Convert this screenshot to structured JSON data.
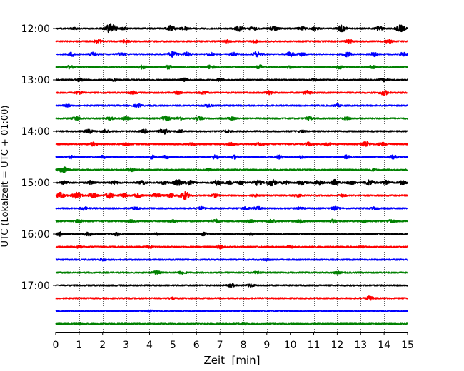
{
  "chart_data": {
    "type": "line",
    "title": "",
    "xlabel": "Zeit  [min]",
    "ylabel": "UTC (Lokalzeit = UTC + 01:00)",
    "xlim": [
      0,
      15
    ],
    "x_ticks": [
      "0",
      "1",
      "2",
      "3",
      "4",
      "5",
      "6",
      "7",
      "8",
      "9",
      "10",
      "11",
      "12",
      "13",
      "14",
      "15"
    ],
    "y_ticks": [
      "12:00",
      "13:00",
      "14:00",
      "15:00",
      "16:00",
      "17:00"
    ],
    "grid": "vertical dotted lines at each minute",
    "legend": "none",
    "trace_interval_minutes": 15,
    "colors_cycle": [
      "#000000",
      "#ff0000",
      "#0000ff",
      "#008000"
    ],
    "series": [
      {
        "start": "12:00",
        "color": "#000000",
        "bursts": [
          [
            0.8,
            0.12
          ],
          [
            2.35,
            0.9
          ],
          [
            2.9,
            0.18
          ],
          [
            4.9,
            0.5
          ],
          [
            5.5,
            0.3
          ],
          [
            7.8,
            0.45
          ],
          [
            8.4,
            0.3
          ],
          [
            9.3,
            0.4
          ],
          [
            10.5,
            0.3
          ],
          [
            11.05,
            0.25
          ],
          [
            12.2,
            0.55
          ],
          [
            13.8,
            0.35
          ],
          [
            14.7,
            0.6
          ]
        ]
      },
      {
        "start": "12:15",
        "color": "#ff0000",
        "bursts": [
          [
            1.8,
            0.3
          ],
          [
            3.0,
            0.25
          ],
          [
            7.3,
            0.25
          ],
          [
            8.5,
            0.2
          ],
          [
            12.5,
            0.3
          ],
          [
            14.2,
            0.25
          ]
        ]
      },
      {
        "start": "12:30",
        "color": "#0000ff",
        "bursts": [
          [
            0.7,
            0.35
          ],
          [
            1.6,
            0.3
          ],
          [
            2.8,
            0.25
          ],
          [
            5.0,
            0.5
          ],
          [
            5.6,
            0.3
          ],
          [
            6.6,
            0.3
          ],
          [
            7.6,
            0.25
          ],
          [
            8.6,
            0.5
          ],
          [
            10.0,
            0.4
          ],
          [
            10.5,
            0.3
          ],
          [
            12.4,
            0.4
          ],
          [
            13.6,
            0.35
          ],
          [
            14.8,
            0.3
          ]
        ]
      },
      {
        "start": "12:45",
        "color": "#008000",
        "bursts": [
          [
            0.6,
            0.3
          ],
          [
            3.7,
            0.3
          ],
          [
            4.8,
            0.3
          ],
          [
            6.6,
            0.35
          ],
          [
            8.7,
            0.3
          ],
          [
            10.0,
            0.25
          ],
          [
            12.1,
            0.3
          ],
          [
            13.5,
            0.25
          ]
        ]
      },
      {
        "start": "13:00",
        "color": "#000000",
        "bursts": [
          [
            1.0,
            0.25
          ],
          [
            2.5,
            0.2
          ],
          [
            5.5,
            0.25
          ],
          [
            7.0,
            0.2
          ],
          [
            11.0,
            0.2
          ],
          [
            14.0,
            0.25
          ]
        ]
      },
      {
        "start": "13:15",
        "color": "#ff0000",
        "bursts": [
          [
            1.0,
            0.3
          ],
          [
            3.3,
            0.25
          ],
          [
            5.2,
            0.25
          ],
          [
            6.3,
            0.3
          ],
          [
            9.1,
            0.3
          ],
          [
            10.7,
            0.35
          ],
          [
            14.0,
            0.45
          ]
        ]
      },
      {
        "start": "13:30",
        "color": "#0000ff",
        "bursts": [
          [
            0.5,
            0.2
          ],
          [
            3.5,
            0.25
          ],
          [
            6.5,
            0.2
          ],
          [
            12.0,
            0.2
          ]
        ]
      },
      {
        "start": "13:45",
        "color": "#008000",
        "bursts": [
          [
            0.9,
            0.35
          ],
          [
            2.3,
            0.25
          ],
          [
            3.0,
            0.35
          ],
          [
            4.7,
            0.45
          ],
          [
            5.3,
            0.3
          ],
          [
            6.1,
            0.3
          ],
          [
            7.5,
            0.25
          ],
          [
            10.8,
            0.25
          ],
          [
            12.4,
            0.25
          ]
        ]
      },
      {
        "start": "14:00",
        "color": "#000000",
        "bursts": [
          [
            1.4,
            0.35
          ],
          [
            2.1,
            0.3
          ],
          [
            3.8,
            0.3
          ],
          [
            4.6,
            0.5
          ],
          [
            5.3,
            0.25
          ],
          [
            7.3,
            0.2
          ],
          [
            10.5,
            0.2
          ]
        ]
      },
      {
        "start": "14:15",
        "color": "#ff0000",
        "bursts": [
          [
            1.6,
            0.3
          ],
          [
            3.0,
            0.2
          ],
          [
            5.8,
            0.2
          ],
          [
            7.5,
            0.25
          ],
          [
            8.7,
            0.25
          ],
          [
            10.8,
            0.3
          ],
          [
            11.6,
            0.25
          ],
          [
            13.2,
            0.6
          ],
          [
            13.9,
            0.3
          ]
        ]
      },
      {
        "start": "14:30",
        "color": "#0000ff",
        "bursts": [
          [
            0.7,
            0.3
          ],
          [
            2.0,
            0.25
          ],
          [
            4.1,
            0.3
          ],
          [
            4.7,
            0.25
          ],
          [
            6.8,
            0.35
          ],
          [
            7.6,
            0.3
          ],
          [
            9.5,
            0.3
          ],
          [
            10.5,
            0.25
          ],
          [
            12.4,
            0.3
          ],
          [
            14.4,
            0.3
          ]
        ]
      },
      {
        "start": "14:45",
        "color": "#008000",
        "bursts": [
          [
            0.3,
            0.6
          ],
          [
            3.2,
            0.25
          ],
          [
            6.5,
            0.2
          ],
          [
            13.5,
            0.2
          ]
        ]
      },
      {
        "start": "15:00",
        "color": "#000000",
        "bursts": [
          [
            0.4,
            0.35
          ],
          [
            1.5,
            0.35
          ],
          [
            2.5,
            0.3
          ],
          [
            3.7,
            0.35
          ],
          [
            4.6,
            0.3
          ],
          [
            5.2,
            0.5
          ],
          [
            5.7,
            0.4
          ],
          [
            6.9,
            0.55
          ],
          [
            7.4,
            0.3
          ],
          [
            7.9,
            0.35
          ],
          [
            8.6,
            0.5
          ],
          [
            9.2,
            0.6
          ],
          [
            9.8,
            0.3
          ],
          [
            10.5,
            0.4
          ],
          [
            11.2,
            0.45
          ],
          [
            11.9,
            0.5
          ],
          [
            12.6,
            0.35
          ],
          [
            13.4,
            0.55
          ],
          [
            14.1,
            0.4
          ],
          [
            14.8,
            0.35
          ]
        ]
      },
      {
        "start": "15:15",
        "color": "#ff0000",
        "bursts": [
          [
            0.2,
            0.5
          ],
          [
            0.9,
            0.55
          ],
          [
            1.6,
            0.5
          ],
          [
            2.3,
            0.45
          ],
          [
            2.9,
            0.35
          ],
          [
            3.5,
            0.3
          ],
          [
            4.3,
            0.45
          ],
          [
            4.9,
            0.4
          ],
          [
            5.5,
            0.7
          ],
          [
            6.8,
            0.25
          ],
          [
            8.5,
            0.2
          ],
          [
            10.3,
            0.2
          ],
          [
            12.2,
            0.2
          ]
        ]
      },
      {
        "start": "15:30",
        "color": "#0000ff",
        "bursts": [
          [
            1.2,
            0.25
          ],
          [
            3.4,
            0.2
          ],
          [
            6.2,
            0.25
          ],
          [
            8.1,
            0.25
          ],
          [
            8.6,
            0.3
          ],
          [
            10.4,
            0.2
          ],
          [
            11.9,
            0.3
          ],
          [
            13.6,
            0.2
          ]
        ]
      },
      {
        "start": "15:45",
        "color": "#008000",
        "bursts": [
          [
            1.0,
            0.25
          ],
          [
            3.2,
            0.2
          ],
          [
            5.0,
            0.25
          ],
          [
            6.8,
            0.3
          ],
          [
            8.3,
            0.25
          ],
          [
            9.2,
            0.3
          ],
          [
            10.4,
            0.25
          ],
          [
            11.8,
            0.3
          ],
          [
            13.1,
            0.25
          ],
          [
            14.3,
            0.25
          ]
        ]
      },
      {
        "start": "16:00",
        "color": "#000000",
        "bursts": [
          [
            0.2,
            0.35
          ],
          [
            1.4,
            0.3
          ],
          [
            2.6,
            0.25
          ],
          [
            4.3,
            0.2
          ],
          [
            6.3,
            0.25
          ],
          [
            8.3,
            0.2
          ]
        ]
      },
      {
        "start": "16:15",
        "color": "#ff0000",
        "bursts": [
          [
            1.0,
            0.2
          ],
          [
            4.0,
            0.2
          ],
          [
            7.0,
            0.3
          ],
          [
            10.0,
            0.2
          ],
          [
            13.0,
            0.2
          ]
        ]
      },
      {
        "start": "16:30",
        "color": "#0000ff",
        "bursts": [
          [
            2.0,
            0.15
          ],
          [
            9.0,
            0.15
          ]
        ]
      },
      {
        "start": "16:45",
        "color": "#008000",
        "bursts": [
          [
            4.3,
            0.3
          ],
          [
            5.4,
            0.25
          ],
          [
            8.6,
            0.2
          ],
          [
            12.0,
            0.2
          ]
        ]
      },
      {
        "start": "17:00",
        "color": "#000000",
        "bursts": [
          [
            7.5,
            0.3
          ],
          [
            8.3,
            0.25
          ]
        ]
      },
      {
        "start": "17:15",
        "color": "#ff0000",
        "bursts": [
          [
            5.0,
            0.2
          ],
          [
            13.4,
            0.35
          ]
        ]
      },
      {
        "start": "17:30",
        "color": "#0000ff",
        "bursts": [
          [
            4.0,
            0.15
          ]
        ]
      },
      {
        "start": "17:45",
        "color": "#008000",
        "bursts": [
          [
            1.0,
            0.12
          ],
          [
            8.0,
            0.12
          ]
        ]
      }
    ]
  }
}
